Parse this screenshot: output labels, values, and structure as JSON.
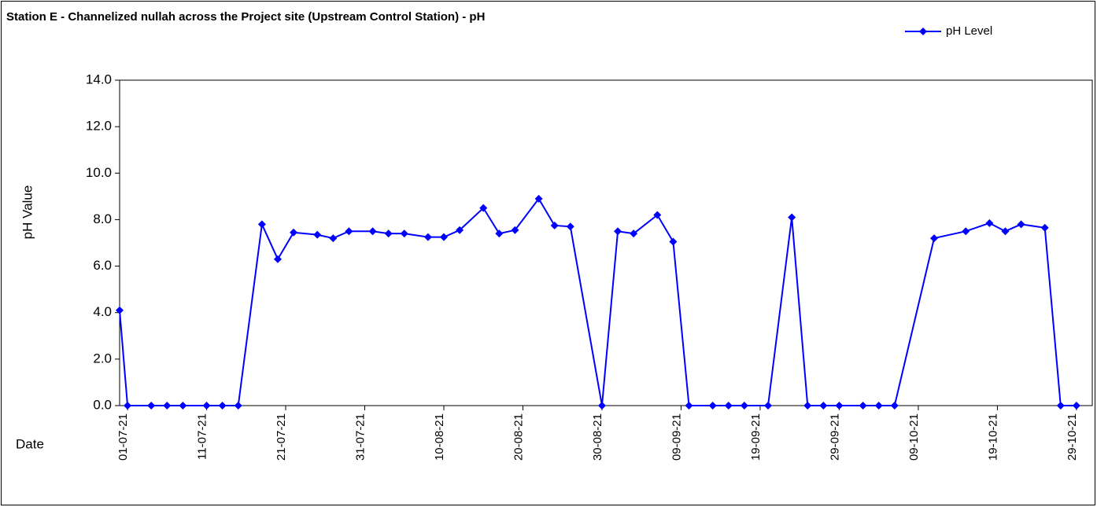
{
  "chart_data": {
    "type": "line",
    "title": "Station E - Channelized nullah across the Project site (Upstream Control Station) - pH",
    "y_label": "pH Value",
    "x_label": "Date",
    "legend": "top-right",
    "x": [
      "2021-06-30",
      "2021-07-01",
      "2021-07-04",
      "2021-07-06",
      "2021-07-08",
      "2021-07-11",
      "2021-07-13",
      "2021-07-15",
      "2021-07-18",
      "2021-07-20",
      "2021-07-22",
      "2021-07-25",
      "2021-07-27",
      "2021-07-29",
      "2021-08-01",
      "2021-08-03",
      "2021-08-05",
      "2021-08-08",
      "2021-08-10",
      "2021-08-12",
      "2021-08-15",
      "2021-08-17",
      "2021-08-19",
      "2021-08-22",
      "2021-08-24",
      "2021-08-26",
      "2021-08-30",
      "2021-09-01",
      "2021-09-03",
      "2021-09-06",
      "2021-09-08",
      "2021-09-10",
      "2021-09-13",
      "2021-09-15",
      "2021-09-17",
      "2021-09-20",
      "2021-09-23",
      "2021-09-25",
      "2021-09-27",
      "2021-09-29",
      "2021-10-02",
      "2021-10-04",
      "2021-10-06",
      "2021-10-11",
      "2021-10-15",
      "2021-10-18",
      "2021-10-20",
      "2021-10-22",
      "2021-10-25",
      "2021-10-27",
      "2021-10-29"
    ],
    "series": [
      {
        "name": "pH Level",
        "color": "#0000ff",
        "values": [
          4.1,
          0,
          0,
          0,
          0,
          0,
          0,
          0,
          7.8,
          6.3,
          7.45,
          7.35,
          7.2,
          7.5,
          7.5,
          7.4,
          7.4,
          7.25,
          7.25,
          7.55,
          8.5,
          7.4,
          7.55,
          8.9,
          7.75,
          7.7,
          0,
          7.5,
          7.4,
          8.2,
          7.05,
          0,
          0,
          0,
          0,
          0,
          8.1,
          0,
          0,
          0,
          0,
          0,
          0,
          7.2,
          7.5,
          7.85,
          7.5,
          7.8,
          7.65,
          0,
          0
        ]
      }
    ],
    "xlim": [
      "2021-06-30",
      "2021-10-31"
    ],
    "xticks": [
      {
        "value": "2021-07-01",
        "label": "01-07-21"
      },
      {
        "value": "2021-07-11",
        "label": "11-07-21"
      },
      {
        "value": "2021-07-21",
        "label": "21-07-21"
      },
      {
        "value": "2021-07-31",
        "label": "31-07-21"
      },
      {
        "value": "2021-08-10",
        "label": "10-08-21"
      },
      {
        "value": "2021-08-20",
        "label": "20-08-21"
      },
      {
        "value": "2021-08-30",
        "label": "30-08-21"
      },
      {
        "value": "2021-09-09",
        "label": "09-09-21"
      },
      {
        "value": "2021-09-19",
        "label": "19-09-21"
      },
      {
        "value": "2021-09-29",
        "label": "29-09-21"
      },
      {
        "value": "2021-10-09",
        "label": "09-10-21"
      },
      {
        "value": "2021-10-19",
        "label": "19-10-21"
      },
      {
        "value": "2021-10-29",
        "label": "29-10-21"
      }
    ],
    "ylim": [
      0,
      14
    ],
    "yticks": [
      {
        "value": 0,
        "label": "0.0"
      },
      {
        "value": 2,
        "label": "2.0"
      },
      {
        "value": 4,
        "label": "4.0"
      },
      {
        "value": 6,
        "label": "6.0"
      },
      {
        "value": 8,
        "label": "8.0"
      },
      {
        "value": 10,
        "label": "10.0"
      },
      {
        "value": 12,
        "label": "12.0"
      },
      {
        "value": 14,
        "label": "14.0"
      }
    ],
    "grid": false
  }
}
